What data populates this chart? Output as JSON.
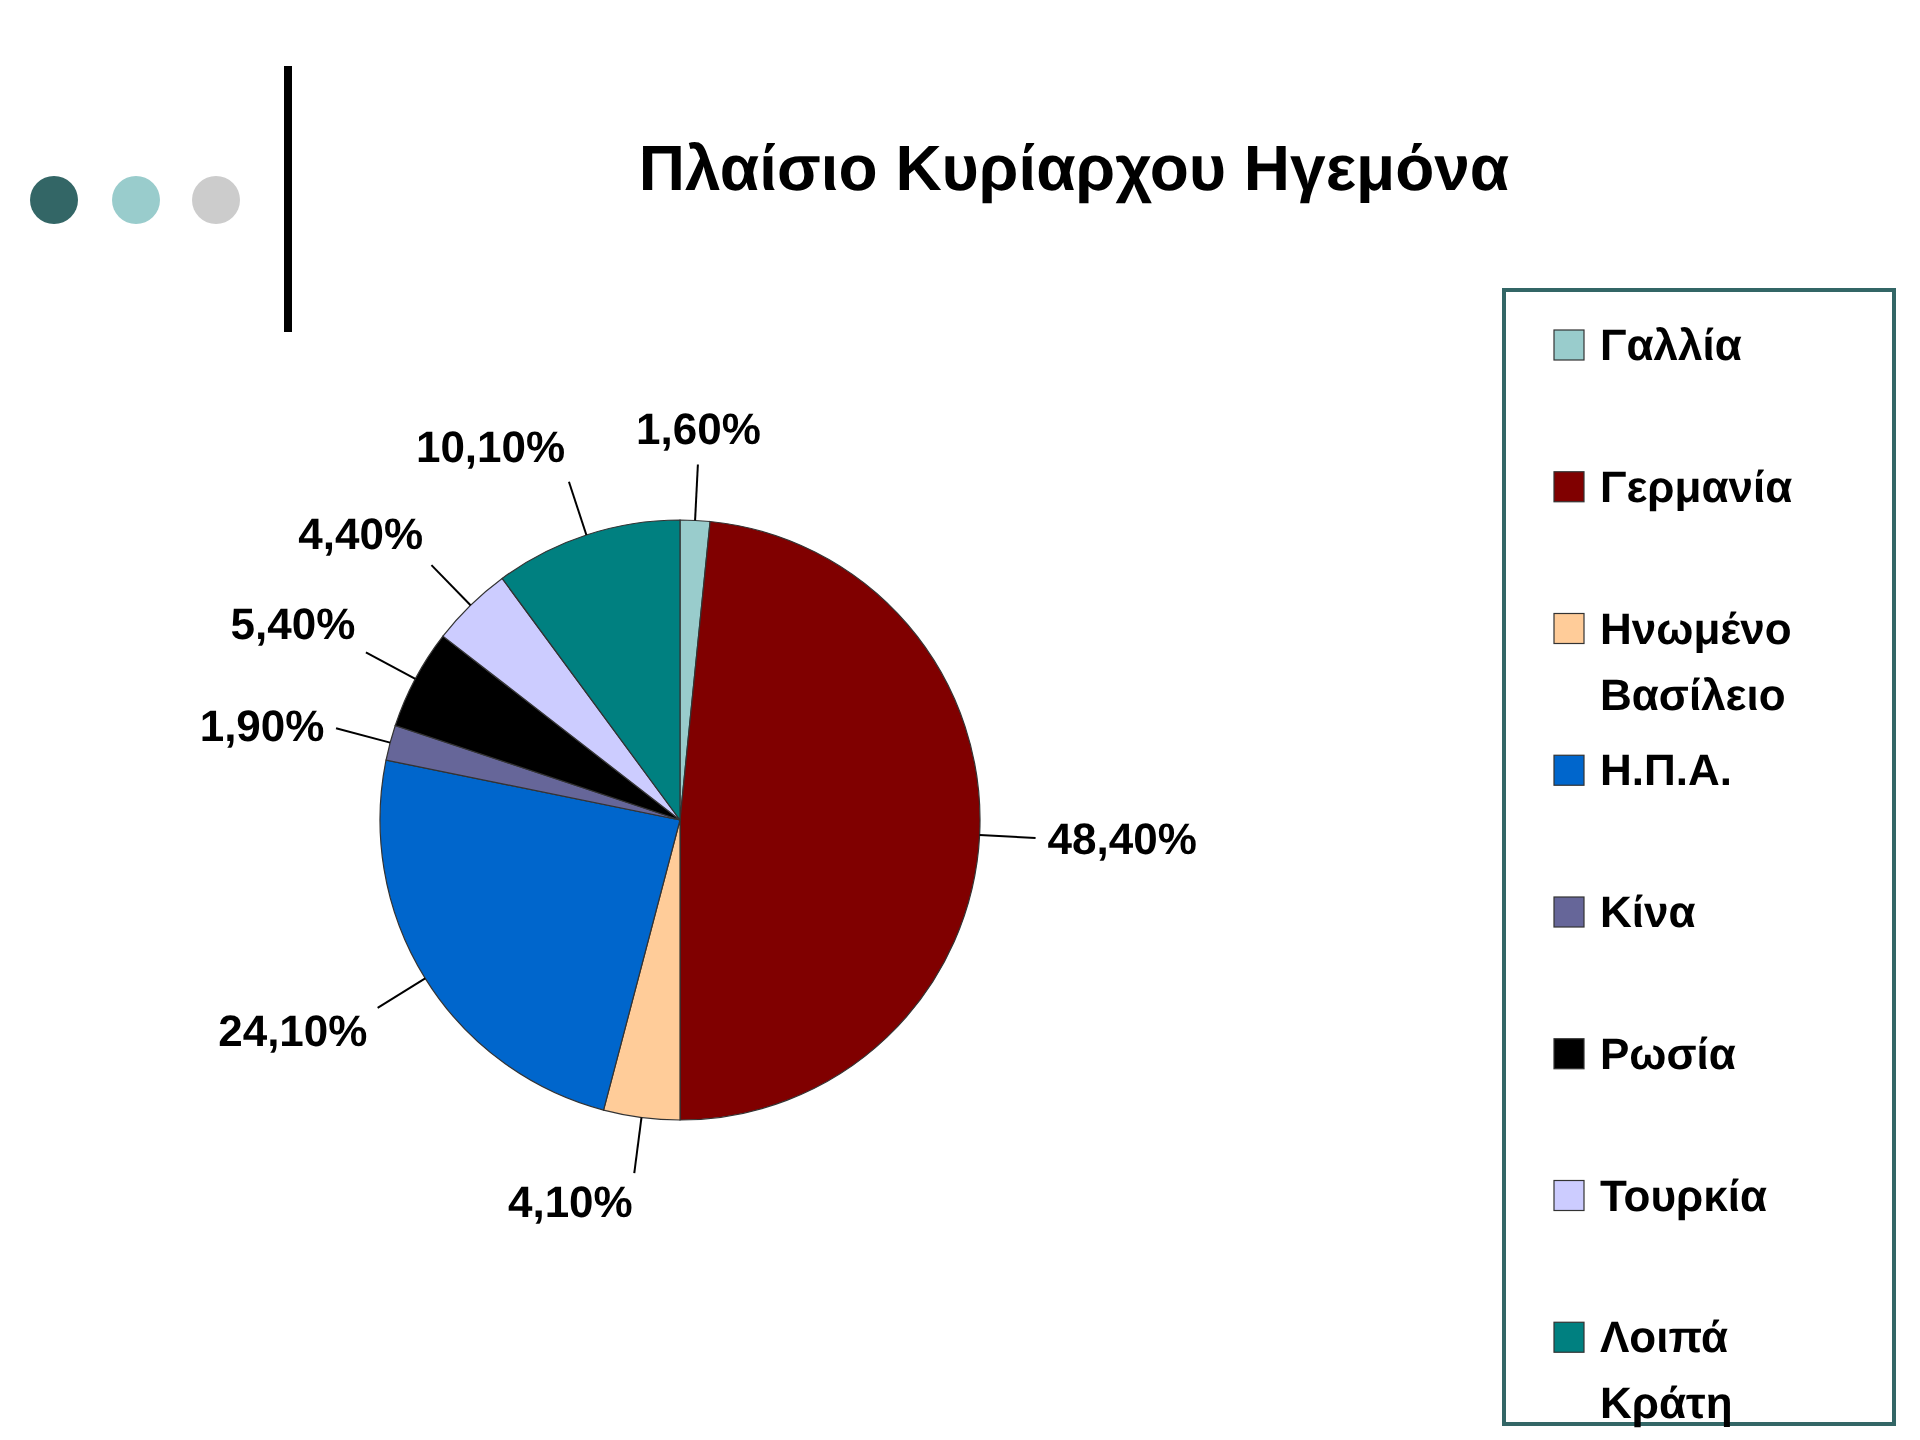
{
  "chart_data": {
    "type": "pie",
    "title": "Πλαίσιο Κυρίαρχου Ηγεμόνα",
    "categories": [
      "Γαλλία",
      "Γερμανία",
      "Ηνωμένο Βασίλειο",
      "Η.Π.Α.",
      "Κίνα",
      "Ρωσία",
      "Τουρκία",
      "Λοιπά Κράτη"
    ],
    "values": [
      1.6,
      48.4,
      4.1,
      24.1,
      1.9,
      5.4,
      4.4,
      10.1
    ],
    "value_labels": [
      "1,60%",
      "48,40%",
      "4,10%",
      "24,10%",
      "1,90%",
      "5,40%",
      "4,40%",
      "10,10%"
    ],
    "colors": [
      "#99cccc",
      "#800000",
      "#ffcc99",
      "#0066cc",
      "#666699",
      "#000000",
      "#ccccff",
      "#008080"
    ],
    "legend": "right"
  }
}
